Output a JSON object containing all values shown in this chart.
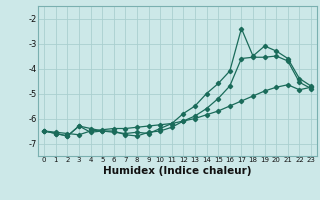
{
  "x": [
    0,
    1,
    2,
    3,
    4,
    5,
    6,
    7,
    8,
    9,
    10,
    11,
    12,
    13,
    14,
    15,
    16,
    17,
    18,
    19,
    20,
    21,
    22,
    23
  ],
  "y_top": [
    -6.5,
    -6.6,
    -6.7,
    -6.3,
    -6.4,
    -6.5,
    -6.55,
    -6.6,
    -6.55,
    -6.6,
    -6.4,
    -6.2,
    -5.8,
    -5.5,
    -5.0,
    -4.6,
    -4.1,
    -2.4,
    -3.5,
    -3.1,
    -3.3,
    -3.6,
    -4.4,
    -4.7
  ],
  "y_mid": [
    -6.5,
    -6.6,
    -6.7,
    -6.3,
    -6.55,
    -6.5,
    -6.5,
    -6.65,
    -6.7,
    -6.55,
    -6.5,
    -6.35,
    -6.1,
    -5.9,
    -5.6,
    -5.2,
    -4.7,
    -3.6,
    -3.55,
    -3.55,
    -3.5,
    -3.7,
    -4.55,
    -4.8
  ],
  "y_linear": [
    -6.5,
    -6.55,
    -6.6,
    -6.65,
    -6.5,
    -6.45,
    -6.4,
    -6.4,
    -6.35,
    -6.3,
    -6.25,
    -6.2,
    -6.1,
    -6.0,
    -5.85,
    -5.7,
    -5.5,
    -5.3,
    -5.1,
    -4.9,
    -4.75,
    -4.65,
    -4.85,
    -4.75
  ],
  "line_color": "#1a6b5a",
  "bg_color": "#cce8e8",
  "grid_color": "#aacfcf",
  "xlabel": "Humidex (Indice chaleur)",
  "ylim": [
    -7.5,
    -1.5
  ],
  "xlim": [
    -0.5,
    23.5
  ],
  "yticks": [
    -7,
    -6,
    -5,
    -4,
    -3,
    -2
  ],
  "xticks": [
    0,
    1,
    2,
    3,
    4,
    5,
    6,
    7,
    8,
    9,
    10,
    11,
    12,
    13,
    14,
    15,
    16,
    17,
    18,
    19,
    20,
    21,
    22,
    23
  ]
}
